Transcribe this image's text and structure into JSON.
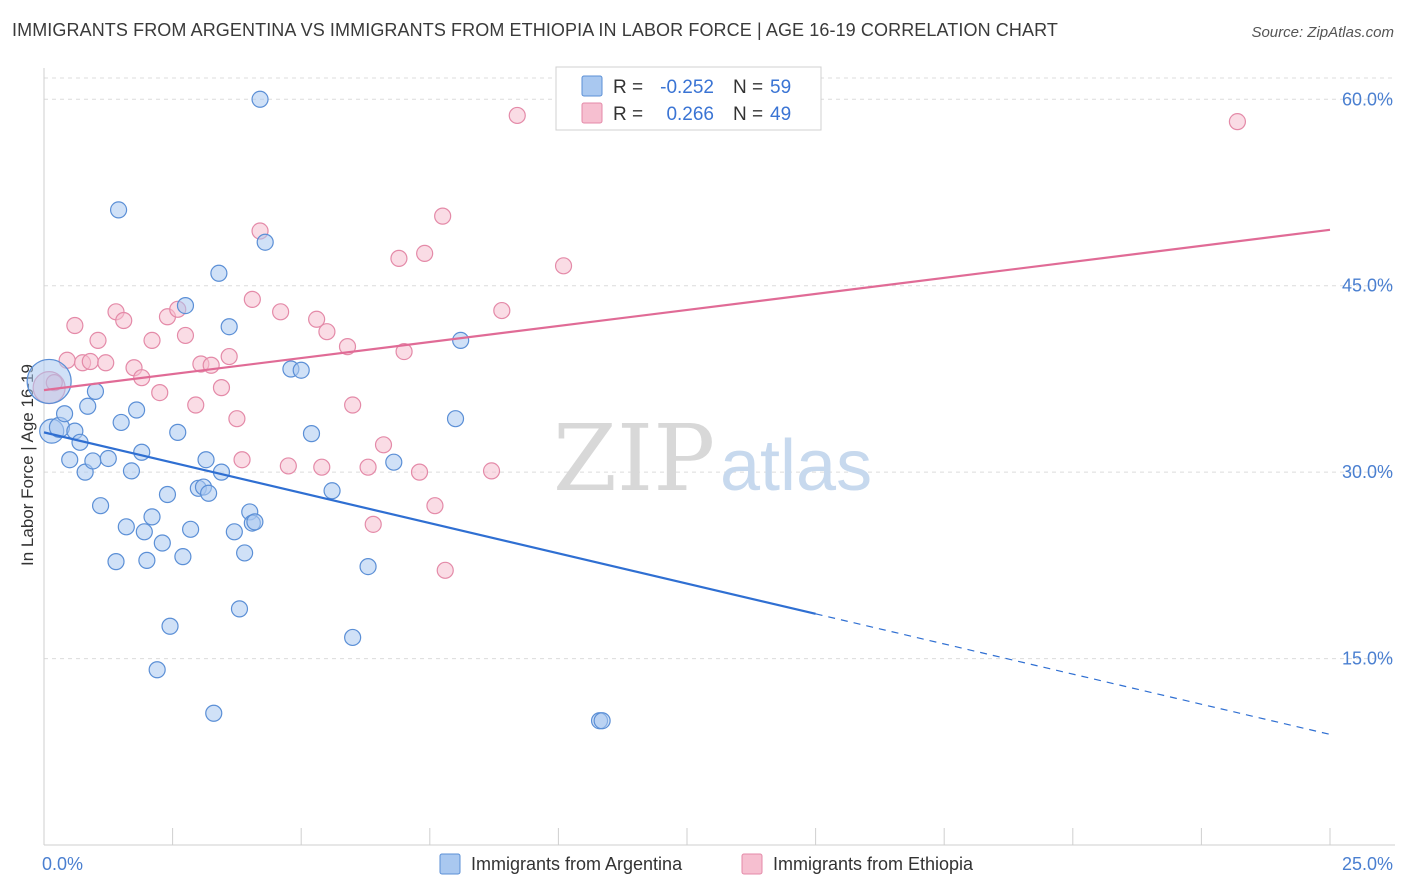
{
  "title": "IMMIGRANTS FROM ARGENTINA VS IMMIGRANTS FROM ETHIOPIA IN LABOR FORCE | AGE 16-19 CORRELATION CHART",
  "source": "Source: ZipAtlas.com",
  "colors": {
    "argentina_fill": "#a9c8f0",
    "argentina_stroke": "#5b8fd6",
    "argentina_line": "#2f6fd2",
    "ethiopia_fill": "#f6bfd0",
    "ethiopia_stroke": "#e48aa8",
    "ethiopia_line": "#e06b96",
    "tick_text": "#4a7fd0",
    "grid": "#dcdcdc"
  },
  "watermark": {
    "zip": "ZIP",
    "atlas": "atlas"
  },
  "legend": {
    "rows": [
      {
        "r_label": "R =",
        "r_value": "-0.252",
        "n_label": "N =",
        "n_value": "59"
      },
      {
        "r_label": "R =",
        "r_value": "0.266",
        "n_label": "N =",
        "n_value": "49"
      }
    ]
  },
  "chart_data": {
    "type": "scatter",
    "title": "IMMIGRANTS FROM ARGENTINA VS IMMIGRANTS FROM ETHIOPIA IN LABOR FORCE | AGE 16-19 CORRELATION CHART",
    "ylabel": "In Labor Force | Age 16-19",
    "xlabel": "",
    "xlim": [
      0,
      25
    ],
    "ylim": [
      0,
      63
    ],
    "x_tick_labels": [
      "0.0%",
      "25.0%"
    ],
    "y_ticks": [
      15,
      30,
      45,
      60
    ],
    "y_tick_labels": [
      "15.0%",
      "30.0%",
      "45.0%",
      "60.0%"
    ],
    "grid": true,
    "legend_position": "top-center",
    "series": [
      {
        "name": "Immigrants from Argentina",
        "r": -0.252,
        "n": 59,
        "trend": {
          "x0": 0,
          "y0": 33.2,
          "x1": 15,
          "y1": 18.6,
          "x_dash_end": 25,
          "y_dash_end": 8.9
        },
        "points": [
          [
            0.1,
            37.3,
            22
          ],
          [
            0.15,
            33.3,
            12
          ],
          [
            0.3,
            33.6,
            10
          ],
          [
            0.4,
            34.7,
            8
          ],
          [
            0.5,
            31.0,
            8
          ],
          [
            0.6,
            33.3,
            8
          ],
          [
            0.7,
            32.4,
            8
          ],
          [
            0.8,
            30.0,
            8
          ],
          [
            0.85,
            35.3,
            8
          ],
          [
            0.95,
            30.9,
            8
          ],
          [
            1.0,
            36.5,
            8
          ],
          [
            1.1,
            27.3,
            8
          ],
          [
            1.25,
            31.1,
            8
          ],
          [
            1.4,
            22.8,
            8
          ],
          [
            1.45,
            51.1,
            8
          ],
          [
            1.5,
            34.0,
            8
          ],
          [
            1.6,
            25.6,
            8
          ],
          [
            1.7,
            30.1,
            8
          ],
          [
            1.8,
            35.0,
            8
          ],
          [
            1.9,
            31.6,
            8
          ],
          [
            1.95,
            25.2,
            8
          ],
          [
            2.0,
            22.9,
            8
          ],
          [
            2.1,
            26.4,
            8
          ],
          [
            2.2,
            14.1,
            8
          ],
          [
            2.3,
            24.3,
            8
          ],
          [
            2.4,
            28.2,
            8
          ],
          [
            2.45,
            17.6,
            8
          ],
          [
            2.6,
            33.2,
            8
          ],
          [
            2.7,
            23.2,
            8
          ],
          [
            2.75,
            43.4,
            8
          ],
          [
            2.85,
            25.4,
            8
          ],
          [
            3.0,
            28.7,
            8
          ],
          [
            3.1,
            28.8,
            8
          ],
          [
            3.15,
            31.0,
            8
          ],
          [
            3.2,
            28.3,
            8
          ],
          [
            3.3,
            10.6,
            8
          ],
          [
            3.4,
            46.0,
            8
          ],
          [
            3.45,
            30.0,
            8
          ],
          [
            3.6,
            41.7,
            8
          ],
          [
            3.7,
            25.2,
            8
          ],
          [
            3.8,
            19.0,
            8
          ],
          [
            3.9,
            23.5,
            8
          ],
          [
            4.0,
            26.8,
            8
          ],
          [
            4.05,
            25.9,
            8
          ],
          [
            4.1,
            26.0,
            8
          ],
          [
            4.2,
            60.0,
            8
          ],
          [
            4.3,
            48.5,
            8
          ],
          [
            4.8,
            38.3,
            8
          ],
          [
            5.0,
            38.2,
            8
          ],
          [
            5.2,
            33.1,
            8
          ],
          [
            5.6,
            28.5,
            8
          ],
          [
            6.0,
            16.7,
            8
          ],
          [
            6.3,
            22.4,
            8
          ],
          [
            6.8,
            30.8,
            8
          ],
          [
            8.0,
            34.3,
            8
          ],
          [
            8.1,
            40.6,
            8
          ],
          [
            10.8,
            10.0,
            8
          ],
          [
            10.85,
            10.0,
            8
          ]
        ]
      },
      {
        "name": "Immigrants from Ethiopia",
        "r": 0.266,
        "n": 49,
        "trend": {
          "x0": 0,
          "y0": 36.6,
          "x1": 25,
          "y1": 49.5
        },
        "points": [
          [
            0.1,
            36.8,
            16
          ],
          [
            0.2,
            37.2,
            8
          ],
          [
            0.45,
            39.0,
            8
          ],
          [
            0.6,
            41.8,
            8
          ],
          [
            0.75,
            38.8,
            8
          ],
          [
            0.9,
            38.9,
            8
          ],
          [
            1.05,
            40.6,
            8
          ],
          [
            1.2,
            38.8,
            8
          ],
          [
            1.4,
            42.9,
            8
          ],
          [
            1.55,
            42.2,
            8
          ],
          [
            1.75,
            38.4,
            8
          ],
          [
            1.9,
            37.6,
            8
          ],
          [
            2.1,
            40.6,
            8
          ],
          [
            2.25,
            36.4,
            8
          ],
          [
            2.4,
            42.5,
            8
          ],
          [
            2.6,
            43.1,
            8
          ],
          [
            2.75,
            41.0,
            8
          ],
          [
            2.95,
            35.4,
            8
          ],
          [
            3.05,
            38.7,
            8
          ],
          [
            3.25,
            38.6,
            8
          ],
          [
            3.45,
            36.8,
            8
          ],
          [
            3.6,
            39.3,
            8
          ],
          [
            3.75,
            34.3,
            8
          ],
          [
            3.85,
            31.0,
            8
          ],
          [
            4.05,
            43.9,
            8
          ],
          [
            4.2,
            49.4,
            8
          ],
          [
            4.6,
            42.9,
            8
          ],
          [
            4.75,
            30.5,
            8
          ],
          [
            5.3,
            42.3,
            8
          ],
          [
            5.4,
            30.4,
            8
          ],
          [
            5.5,
            41.3,
            8
          ],
          [
            5.9,
            40.1,
            8
          ],
          [
            6.0,
            35.4,
            8
          ],
          [
            6.3,
            30.4,
            8
          ],
          [
            6.4,
            25.8,
            8
          ],
          [
            6.6,
            32.2,
            8
          ],
          [
            6.9,
            47.2,
            8
          ],
          [
            7.0,
            39.7,
            8
          ],
          [
            7.3,
            30.0,
            8
          ],
          [
            7.4,
            47.6,
            8
          ],
          [
            7.6,
            27.3,
            8
          ],
          [
            7.75,
            50.6,
            8
          ],
          [
            7.8,
            22.1,
            8
          ],
          [
            8.7,
            30.1,
            8
          ],
          [
            8.9,
            43.0,
            8
          ],
          [
            9.2,
            58.7,
            8
          ],
          [
            10.1,
            46.6,
            8
          ],
          [
            23.2,
            58.2,
            8
          ]
        ]
      }
    ]
  }
}
